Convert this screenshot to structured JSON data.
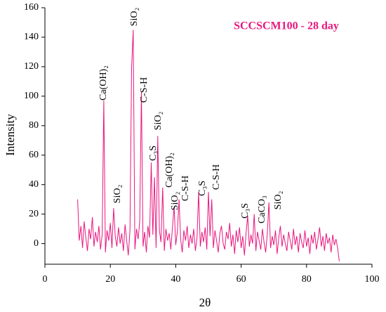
{
  "chart_data": {
    "type": "line",
    "title": "SCCSCM100 - 28 day",
    "xlabel": "2θ",
    "ylabel": "Intensity",
    "xlim": [
      0,
      100
    ],
    "xticks": [
      0,
      20,
      40,
      60,
      80,
      100
    ],
    "ylim": [
      -14,
      160
    ],
    "yticks": [
      0,
      20,
      40,
      60,
      80,
      100,
      120,
      140,
      160
    ],
    "series": [
      {
        "color": "#e8177f",
        "x": [
          10,
          10.5,
          11,
          11.5,
          12,
          12.5,
          13,
          13.5,
          14,
          14.5,
          15,
          15.5,
          16,
          16.5,
          17,
          17.5,
          18,
          18.5,
          19,
          19.5,
          20,
          20.5,
          21,
          21.5,
          22,
          22.5,
          23,
          23.5,
          24,
          24.5,
          25,
          25.5,
          26,
          26.5,
          27,
          27.5,
          28,
          28.5,
          29,
          29.5,
          30,
          30.5,
          31,
          31.5,
          32,
          32.5,
          33,
          33.5,
          34,
          34.5,
          35,
          35.5,
          36,
          36.5,
          37,
          37.5,
          38,
          38.5,
          39,
          39.5,
          40,
          40.5,
          41,
          41.5,
          42,
          42.5,
          43,
          43.5,
          44,
          44.5,
          45,
          45.5,
          46,
          46.5,
          47,
          47.5,
          48,
          48.5,
          49,
          49.5,
          50,
          50.5,
          51,
          51.5,
          52,
          52.5,
          53,
          53.5,
          54,
          54.5,
          55,
          55.5,
          56,
          56.5,
          57,
          57.5,
          58,
          58.5,
          59,
          59.5,
          60,
          60.5,
          61,
          61.5,
          62,
          62.5,
          63,
          63.5,
          64,
          64.5,
          65,
          65.5,
          66,
          66.5,
          67,
          67.5,
          68,
          68.5,
          69,
          69.5,
          70,
          70.5,
          71,
          71.5,
          72,
          72.5,
          73,
          73.5,
          74,
          74.5,
          75,
          75.5,
          76,
          76.5,
          77,
          77.5,
          78,
          78.5,
          79,
          79.5,
          80,
          80.5,
          81,
          81.5,
          82,
          82.5,
          83,
          83.5,
          84,
          84.5,
          85,
          85.5,
          86,
          86.5,
          87,
          87.5,
          88,
          88.5,
          89,
          89.5,
          90
        ],
        "values": [
          30,
          2,
          12,
          -3,
          15,
          4,
          -5,
          10,
          3,
          18,
          -2,
          8,
          1,
          12,
          -4,
          6,
          97,
          -6,
          9,
          2,
          14,
          -3,
          24,
          5,
          -2,
          11,
          0,
          7,
          -5,
          13,
          2,
          -8,
          9,
          119,
          145,
          -4,
          10,
          3,
          15,
          103,
          -2,
          8,
          -6,
          12,
          4,
          55,
          6,
          45,
          -3,
          73,
          9,
          1,
          38,
          -5,
          10,
          2,
          7,
          -4,
          11,
          25,
          -1,
          8,
          30,
          3,
          -6,
          9,
          2,
          12,
          -3,
          6,
          0,
          10,
          -5,
          4,
          35,
          -2,
          8,
          1,
          11,
          -4,
          35,
          5,
          30,
          -3,
          9,
          2,
          -6,
          7,
          12,
          0,
          -4,
          8,
          3,
          14,
          -2,
          6,
          -7,
          9,
          1,
          11,
          -3,
          5,
          -8,
          7,
          19,
          -2,
          6,
          0,
          20,
          -5,
          8,
          2,
          -4,
          10,
          1,
          -6,
          7,
          28,
          -3,
          5,
          -1,
          9,
          -7,
          4,
          12,
          -2,
          6,
          0,
          -5,
          8,
          2,
          -4,
          10,
          -1,
          5,
          -6,
          7,
          1,
          -3,
          9,
          -2,
          4,
          -7,
          6,
          0,
          8,
          -4,
          3,
          11,
          -2,
          5,
          -5,
          7,
          0,
          4,
          -6,
          6,
          -1,
          3,
          -3,
          -12
        ]
      }
    ],
    "annotations": [
      "Ca(OH)₂",
      "SiO₂",
      "SiO₂",
      "C-S-H",
      "SiO₂",
      "C₃S",
      "Ca(OH)₂",
      "SiO₂",
      "C-S-H",
      "C₃S",
      "C-S-H",
      "C₃S",
      "CaCO₃",
      "SiO₂"
    ]
  }
}
